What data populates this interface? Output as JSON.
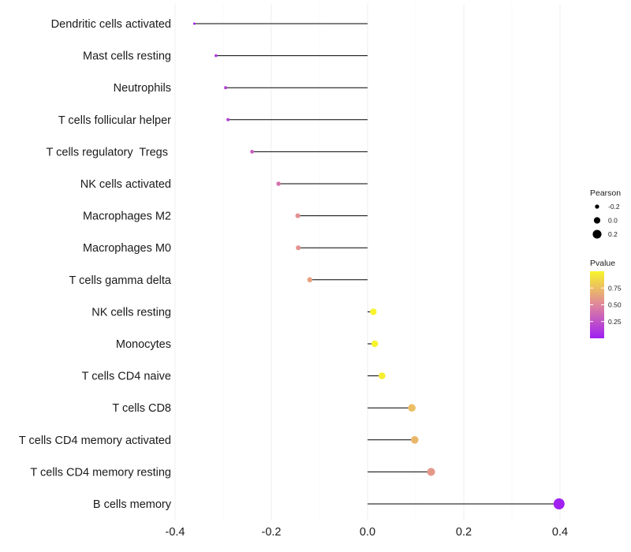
{
  "chart_data": {
    "type": "lollipop",
    "categories": [
      "Dendritic cells activated",
      "Mast cells resting",
      "Neutrophils",
      "T cells follicular helper",
      "T cells regulatory  Tregs ",
      "NK cells activated",
      "Macrophages M2",
      "Macrophages M0",
      "T cells gamma delta",
      "NK cells resting",
      "Monocytes",
      "T cells CD4 naive",
      "T cells CD8",
      "T cells CD4 memory activated",
      "T cells CD4 memory resting",
      "B cells memory"
    ],
    "pearson": [
      -0.36,
      -0.315,
      -0.295,
      -0.29,
      -0.24,
      -0.185,
      -0.145,
      -0.144,
      -0.12,
      0.012,
      0.015,
      0.03,
      0.092,
      0.098,
      0.132,
      0.398
    ],
    "pvalue": [
      0.02,
      0.12,
      0.15,
      0.16,
      0.3,
      0.4,
      0.55,
      0.56,
      0.62,
      0.99,
      0.99,
      0.97,
      0.75,
      0.72,
      0.58,
      0.01
    ],
    "xlim": [
      -0.4,
      0.4
    ],
    "xticks": [
      -0.4,
      -0.2,
      0.0,
      0.2,
      0.4
    ],
    "xtick_labels": [
      "-0.4",
      "-0.2",
      "0.0",
      "0.2",
      "0.4"
    ],
    "stem_origin": 0.0,
    "legend_size": {
      "title": "Pearson",
      "values": [
        -0.2,
        0.0,
        0.2
      ],
      "labels": [
        "-0.2",
        "0.0",
        "0.2"
      ]
    },
    "legend_color": {
      "title": "Pvalue",
      "low_color": "#9f1ff2",
      "mid_color": "#e0869c",
      "high_color": "#f7f52a",
      "ticks": [
        0.25,
        0.5,
        0.75
      ],
      "tick_labels": [
        "0.25",
        "0.50",
        "0.75"
      ],
      "range": [
        0.0,
        1.0
      ]
    },
    "stem_color": "#000000",
    "grid": true
  }
}
